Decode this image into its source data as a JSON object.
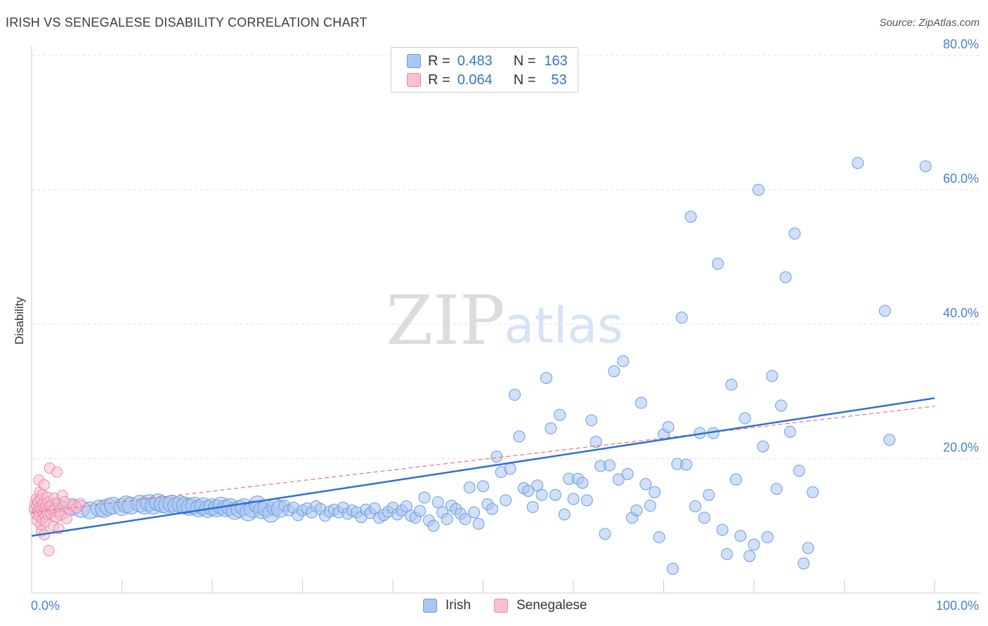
{
  "title": "IRISH VS SENEGALESE DISABILITY CORRELATION CHART",
  "source": "Source: ZipAtlas.com",
  "watermark": {
    "zip": "ZIP",
    "atlas": "atlas"
  },
  "legend": {
    "rows": [
      {
        "r_label": "R =",
        "r_value": "0.483",
        "n_label": "N =",
        "n_value": "163",
        "color": "#a9c6f0",
        "border": "#6d9be0"
      },
      {
        "r_label": "R =",
        "r_value": "0.064",
        "n_label": "N =",
        "n_value": "53",
        "color": "#f7c1d1",
        "border": "#e98aa8"
      }
    ]
  },
  "bottom_legend": [
    {
      "label": "Irish",
      "color": "#a9c6f0",
      "border": "#6d9be0"
    },
    {
      "label": "Senegalese",
      "color": "#f7c1d1",
      "border": "#e98aa8"
    }
  ],
  "chart_data": {
    "type": "scatter",
    "title": "IRISH VS SENEGALESE DISABILITY CORRELATION CHART",
    "xlabel": "",
    "ylabel": "Disability",
    "xlim": [
      0,
      100
    ],
    "ylim": [
      0,
      80
    ],
    "x_tick_labels": [
      "0.0%",
      "100.0%"
    ],
    "y_ticks": [
      20,
      40,
      60,
      80
    ],
    "y_tick_labels": [
      "20.0%",
      "40.0%",
      "60.0%",
      "80.0%"
    ],
    "grid": true,
    "colors": {
      "irish": "#6d9be0",
      "irish_fill": "#a9c6f0",
      "senegalese": "#e98aa8",
      "senegalese_fill": "#f7c1d1",
      "irish_trend": "#2f6fd6",
      "senegalese_trend": "#e07090"
    },
    "series": [
      {
        "name": "Irish",
        "trend": {
          "x": [
            0,
            100
          ],
          "y": [
            8.5,
            29.0
          ]
        },
        "points": [
          [
            2.5,
            12.8
          ],
          [
            3.5,
            12.3
          ],
          [
            4.5,
            12.8
          ],
          [
            5.5,
            12.5
          ],
          [
            6.5,
            12.3
          ],
          [
            7.5,
            12.6
          ],
          [
            8.0,
            12.5
          ],
          [
            8.5,
            12.8
          ],
          [
            9.0,
            13.0
          ],
          [
            10.0,
            12.8
          ],
          [
            10.5,
            13.2
          ],
          [
            11.0,
            13.0
          ],
          [
            12.0,
            13.3
          ],
          [
            12.5,
            13.0
          ],
          [
            13.0,
            13.4
          ],
          [
            13.5,
            13.0
          ],
          [
            14.0,
            13.5
          ],
          [
            14.5,
            13.2
          ],
          [
            15.0,
            13.1
          ],
          [
            15.5,
            13.3
          ],
          [
            16.0,
            13.0
          ],
          [
            16.5,
            13.2
          ],
          [
            17.0,
            13.0
          ],
          [
            17.5,
            12.8
          ],
          [
            18.0,
            13.0
          ],
          [
            18.5,
            12.6
          ],
          [
            19.0,
            12.9
          ],
          [
            19.5,
            12.5
          ],
          [
            20.0,
            12.8
          ],
          [
            20.5,
            12.6
          ],
          [
            21.0,
            13.0
          ],
          [
            21.5,
            12.6
          ],
          [
            22.0,
            12.8
          ],
          [
            22.5,
            12.2
          ],
          [
            23.0,
            12.5
          ],
          [
            23.5,
            12.8
          ],
          [
            24.0,
            12.0
          ],
          [
            24.5,
            12.5
          ],
          [
            25.0,
            13.2
          ],
          [
            25.5,
            12.3
          ],
          [
            26.0,
            12.6
          ],
          [
            26.5,
            11.8
          ],
          [
            27.0,
            12.8
          ],
          [
            27.5,
            12.5
          ],
          [
            28.0,
            13.0
          ],
          [
            28.5,
            12.3
          ],
          [
            29.0,
            12.7
          ],
          [
            29.5,
            11.6
          ],
          [
            30.0,
            12.3
          ],
          [
            30.5,
            12.6
          ],
          [
            31.0,
            12.0
          ],
          [
            31.5,
            12.9
          ],
          [
            32.0,
            12.5
          ],
          [
            32.5,
            11.5
          ],
          [
            33.0,
            12.1
          ],
          [
            33.5,
            12.4
          ],
          [
            34.0,
            12.0
          ],
          [
            34.5,
            12.7
          ],
          [
            35.0,
            11.8
          ],
          [
            35.5,
            12.3
          ],
          [
            36.0,
            12.0
          ],
          [
            36.5,
            11.3
          ],
          [
            37.0,
            12.4
          ],
          [
            37.5,
            11.9
          ],
          [
            38.0,
            12.6
          ],
          [
            38.5,
            11.2
          ],
          [
            39.0,
            11.6
          ],
          [
            39.5,
            12.1
          ],
          [
            40.0,
            12.7
          ],
          [
            40.5,
            11.7
          ],
          [
            41.0,
            12.3
          ],
          [
            41.5,
            12.9
          ],
          [
            42.0,
            11.5
          ],
          [
            42.5,
            11.2
          ],
          [
            43.0,
            12.2
          ],
          [
            43.5,
            14.2
          ],
          [
            44.0,
            10.8
          ],
          [
            44.5,
            10.0
          ],
          [
            45.0,
            13.5
          ],
          [
            45.5,
            12.0
          ],
          [
            46.0,
            11.0
          ],
          [
            46.5,
            13.0
          ],
          [
            47.0,
            12.5
          ],
          [
            47.5,
            11.8
          ],
          [
            48.0,
            11.0
          ],
          [
            48.5,
            15.7
          ],
          [
            49.0,
            12.0
          ],
          [
            49.5,
            10.3
          ],
          [
            50.0,
            15.9
          ],
          [
            50.5,
            13.2
          ],
          [
            51.0,
            12.5
          ],
          [
            51.5,
            20.3
          ],
          [
            52.0,
            18.0
          ],
          [
            52.5,
            13.8
          ],
          [
            53.0,
            18.5
          ],
          [
            53.5,
            29.5
          ],
          [
            54.0,
            23.3
          ],
          [
            54.5,
            15.6
          ],
          [
            55.0,
            15.2
          ],
          [
            55.5,
            12.8
          ],
          [
            56.0,
            16.0
          ],
          [
            56.5,
            14.6
          ],
          [
            57.0,
            32.0
          ],
          [
            57.5,
            24.5
          ],
          [
            58.0,
            14.6
          ],
          [
            58.5,
            26.5
          ],
          [
            59.0,
            11.7
          ],
          [
            59.5,
            17.0
          ],
          [
            60.0,
            14.0
          ],
          [
            60.5,
            17.0
          ],
          [
            61.0,
            16.4
          ],
          [
            61.5,
            13.8
          ],
          [
            62.0,
            25.7
          ],
          [
            62.5,
            22.5
          ],
          [
            63.0,
            18.9
          ],
          [
            63.5,
            8.8
          ],
          [
            64.0,
            19.0
          ],
          [
            64.5,
            33.0
          ],
          [
            65.0,
            16.9
          ],
          [
            65.5,
            34.5
          ],
          [
            66.0,
            17.7
          ],
          [
            66.5,
            11.2
          ],
          [
            67.0,
            12.3
          ],
          [
            67.5,
            28.3
          ],
          [
            68.0,
            16.2
          ],
          [
            68.5,
            13.0
          ],
          [
            69.0,
            15.0
          ],
          [
            69.5,
            8.3
          ],
          [
            70.0,
            23.6
          ],
          [
            70.5,
            24.7
          ],
          [
            71.0,
            3.6
          ],
          [
            71.5,
            19.2
          ],
          [
            72.0,
            41.0
          ],
          [
            72.5,
            19.1
          ],
          [
            73.0,
            56.0
          ],
          [
            73.5,
            12.9
          ],
          [
            74.0,
            23.8
          ],
          [
            74.5,
            11.2
          ],
          [
            75.0,
            14.6
          ],
          [
            75.5,
            23.8
          ],
          [
            76.0,
            49.0
          ],
          [
            76.5,
            9.4
          ],
          [
            77.0,
            5.8
          ],
          [
            77.5,
            31.0
          ],
          [
            78.0,
            16.9
          ],
          [
            78.5,
            8.5
          ],
          [
            79.0,
            26.0
          ],
          [
            79.5,
            5.5
          ],
          [
            80.0,
            7.2
          ],
          [
            80.5,
            60.0
          ],
          [
            81.0,
            21.8
          ],
          [
            81.5,
            8.3
          ],
          [
            82.0,
            32.3
          ],
          [
            82.5,
            15.5
          ],
          [
            83.0,
            27.9
          ],
          [
            83.5,
            47.0
          ],
          [
            84.0,
            24.0
          ],
          [
            84.5,
            53.5
          ],
          [
            85.0,
            18.2
          ],
          [
            85.5,
            4.4
          ],
          [
            86.0,
            6.7
          ],
          [
            86.5,
            15.0
          ],
          [
            91.5,
            64.0
          ],
          [
            94.5,
            42.0
          ],
          [
            95.0,
            22.8
          ],
          [
            99.0,
            63.5
          ]
        ]
      },
      {
        "name": "Senegalese",
        "trend": {
          "x": [
            0,
            100
          ],
          "y": [
            12.0,
            27.8
          ]
        },
        "points": [
          [
            0.3,
            12.5
          ],
          [
            0.4,
            13.2
          ],
          [
            0.5,
            11.8
          ],
          [
            0.5,
            14.0
          ],
          [
            0.6,
            12.9
          ],
          [
            0.6,
            10.8
          ],
          [
            0.7,
            13.6
          ],
          [
            0.7,
            12.2
          ],
          [
            0.8,
            16.8
          ],
          [
            0.8,
            11.5
          ],
          [
            0.9,
            15.0
          ],
          [
            0.9,
            12.7
          ],
          [
            1.0,
            13.9
          ],
          [
            1.0,
            10.2
          ],
          [
            1.1,
            12.4
          ],
          [
            1.1,
            9.2
          ],
          [
            1.2,
            11.0
          ],
          [
            1.2,
            14.6
          ],
          [
            1.3,
            12.0
          ],
          [
            1.3,
            13.3
          ],
          [
            1.4,
            8.7
          ],
          [
            1.4,
            16.1
          ],
          [
            1.5,
            12.6
          ],
          [
            1.5,
            11.4
          ],
          [
            1.6,
            13.0
          ],
          [
            1.6,
            10.6
          ],
          [
            1.7,
            14.3
          ],
          [
            1.7,
            12.1
          ],
          [
            1.8,
            11.7
          ],
          [
            1.8,
            13.5
          ],
          [
            1.9,
            6.3
          ],
          [
            2.0,
            12.8
          ],
          [
            2.0,
            18.6
          ],
          [
            2.1,
            11.9
          ],
          [
            2.2,
            13.1
          ],
          [
            2.3,
            12.3
          ],
          [
            2.4,
            10.0
          ],
          [
            2.5,
            14.1
          ],
          [
            2.6,
            12.5
          ],
          [
            2.7,
            11.3
          ],
          [
            2.8,
            18.0
          ],
          [
            2.9,
            13.4
          ],
          [
            3.0,
            9.6
          ],
          [
            3.1,
            12.2
          ],
          [
            3.2,
            11.6
          ],
          [
            3.4,
            14.5
          ],
          [
            3.5,
            12.9
          ],
          [
            3.7,
            13.6
          ],
          [
            3.9,
            11.1
          ],
          [
            4.2,
            12.4
          ],
          [
            4.6,
            13.0
          ],
          [
            5.0,
            12.7
          ],
          [
            5.4,
            13.3
          ]
        ]
      }
    ]
  }
}
